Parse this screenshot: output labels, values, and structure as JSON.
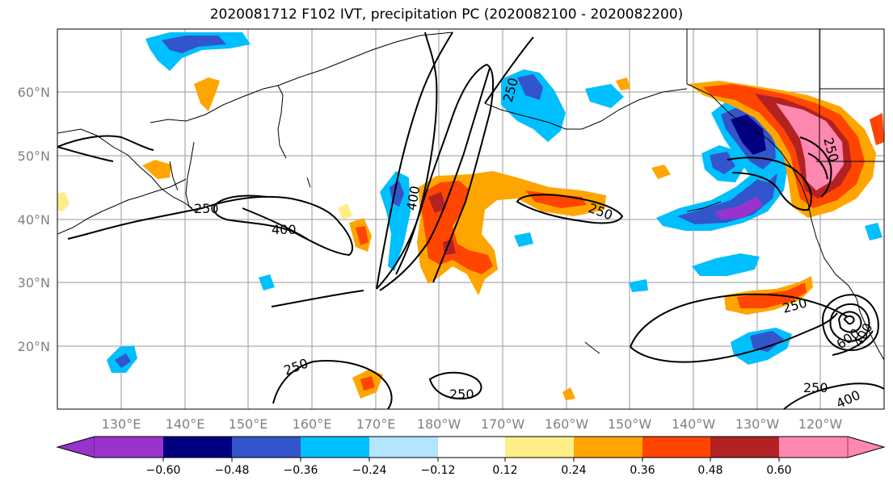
{
  "title": "2020081712 F102 IVT, precipitation PC (2020082100 - 2020082200)",
  "longitude_labels": [
    "130°E",
    "140°E",
    "150°E",
    "160°E",
    "170°E",
    "180°W",
    "170°W",
    "160°W",
    "150°W",
    "140°W",
    "130°W",
    "120°W"
  ],
  "latitude_labels": [
    "60°N",
    "50°N",
    "40°N",
    "30°N",
    "20°N"
  ],
  "contour_labels": [
    "250",
    "400",
    "250",
    "400",
    "250",
    "250",
    "250",
    "250",
    "250",
    "400",
    "600",
    "250",
    "400"
  ],
  "colorbar": {
    "colors": [
      "#9933cc",
      "#000080",
      "#3355cc",
      "#00bfff",
      "#b3e5ff",
      "#ffffff",
      "#ffee88",
      "#ffa500",
      "#ff4500",
      "#b22222",
      "#ff88b0"
    ],
    "tick_labels": [
      "−0.60",
      "−0.48",
      "−0.36",
      "−0.24",
      "−0.12",
      "0.12",
      "0.24",
      "0.36",
      "0.48",
      "0.60"
    ]
  },
  "palette": {
    "c_purple": "#9933cc",
    "c_navy": "#000080",
    "c_blue": "#3355cc",
    "c_sky": "#00bfff",
    "c_lightblue": "#b3e5ff",
    "c_yellow": "#ffee88",
    "c_orange": "#ffa500",
    "c_redorange": "#ff4500",
    "c_darkred": "#b22222",
    "c_pink": "#ff88b0"
  }
}
